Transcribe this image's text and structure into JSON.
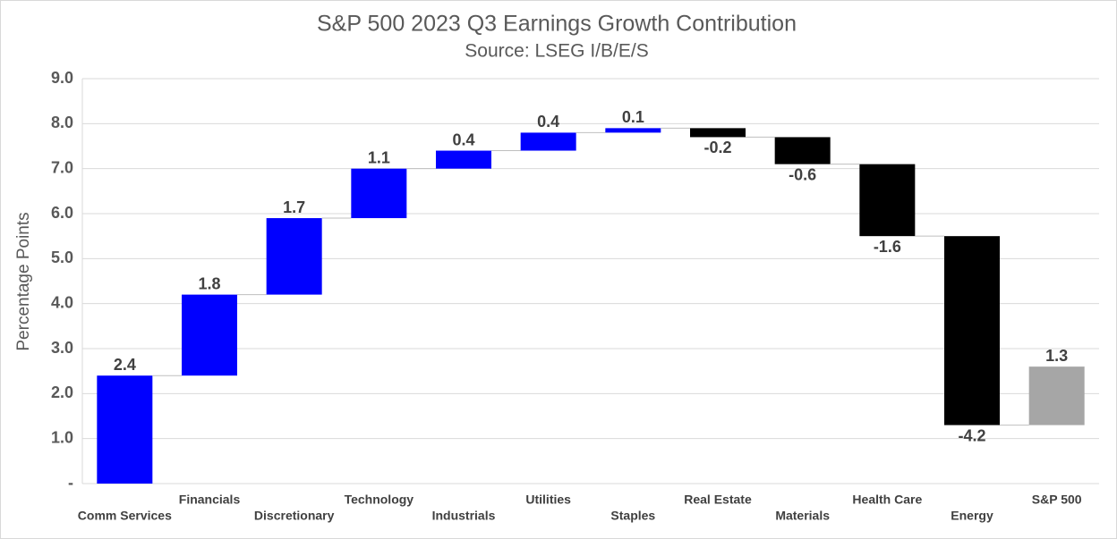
{
  "chart_data": {
    "type": "waterfall",
    "title": "S&P 500 2023 Q3 Earnings Growth Contribution",
    "subtitle": "Source: LSEG I/B/E/S",
    "y_label": "Percentage Points",
    "categories": [
      "Comm Services",
      "Financials",
      "Discretionary",
      "Technology",
      "Industrials",
      "Utilities",
      "Staples",
      "Real Estate",
      "Materials",
      "Health Care",
      "Energy",
      "S&P 500"
    ],
    "values": [
      2.4,
      1.8,
      1.7,
      1.1,
      0.4,
      0.4,
      0.1,
      -0.2,
      -0.6,
      -1.6,
      -4.2,
      1.3
    ],
    "colors": [
      "#0000ff",
      "#0000ff",
      "#0000ff",
      "#0000ff",
      "#0000ff",
      "#0000ff",
      "#0000ff",
      "#000000",
      "#000000",
      "#000000",
      "#000000",
      "#a6a6a6"
    ],
    "ylim": [
      0,
      9
    ],
    "yticks": [
      {
        "value": 0,
        "label": "-"
      },
      {
        "value": 1,
        "label": "1.0"
      },
      {
        "value": 2,
        "label": "2.0"
      },
      {
        "value": 3,
        "label": "3.0"
      },
      {
        "value": 4,
        "label": "4.0"
      },
      {
        "value": 5,
        "label": "5.0"
      },
      {
        "value": 6,
        "label": "6.0"
      },
      {
        "value": 7,
        "label": "7.0"
      },
      {
        "value": 8,
        "label": "8.0"
      },
      {
        "value": 9,
        "label": "9.0"
      }
    ],
    "grid": true
  }
}
